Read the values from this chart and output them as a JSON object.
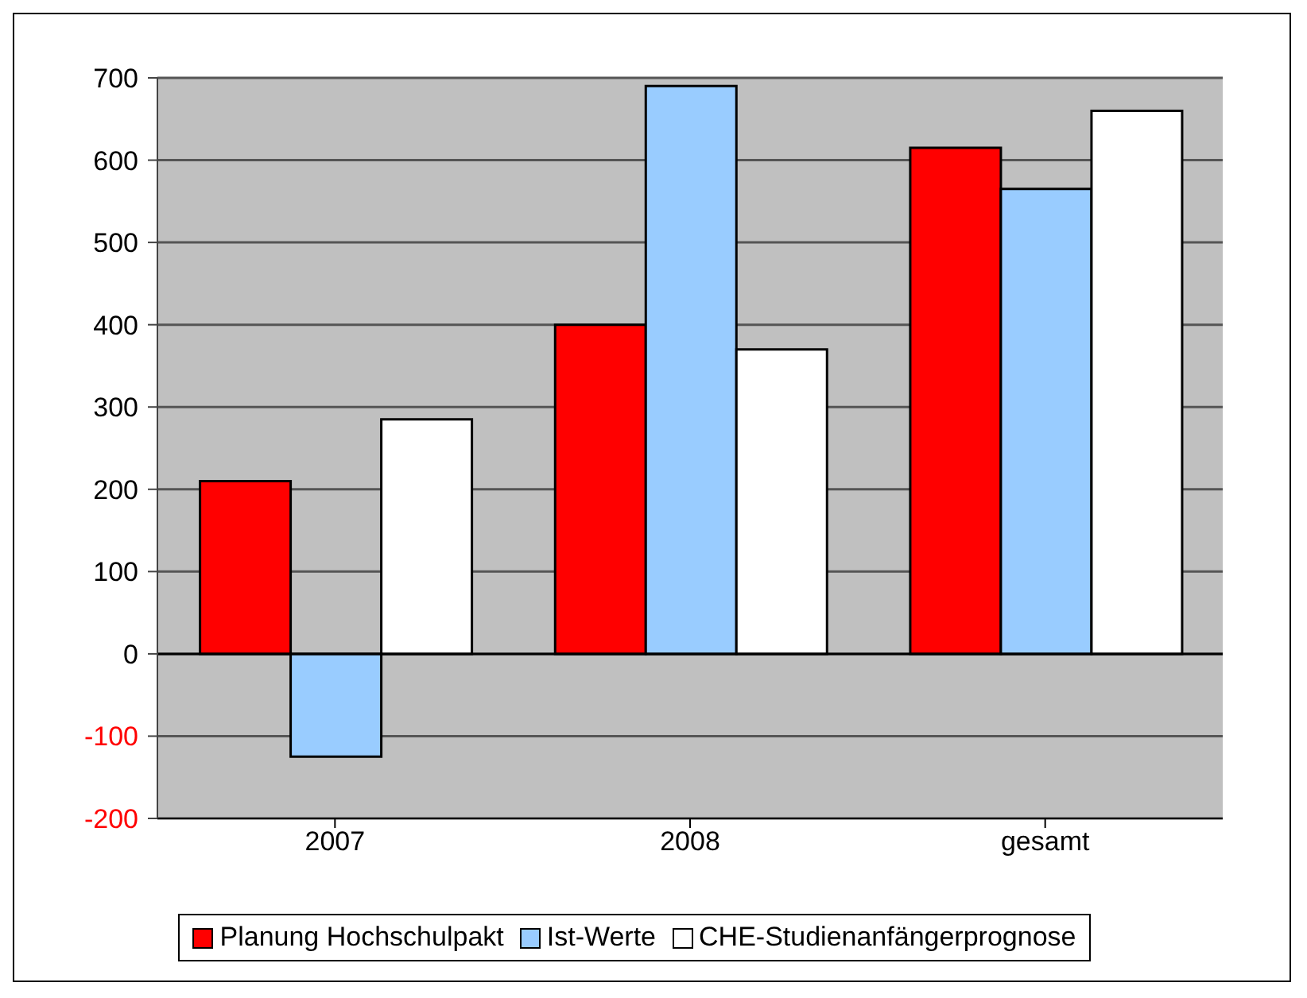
{
  "chart_data": {
    "type": "bar",
    "categories": [
      "2007",
      "2008",
      "gesamt"
    ],
    "series": [
      {
        "name": "Planung Hochschulpakt",
        "color": "#ff0000",
        "values": [
          210,
          400,
          615
        ]
      },
      {
        "name": "Ist-Werte",
        "color": "#99ccff",
        "values": [
          -125,
          690,
          565
        ]
      },
      {
        "name": "CHE-Studienanfängerprognose",
        "color": "#ffffff",
        "values": [
          285,
          370,
          660
        ]
      }
    ],
    "ylim": [
      -200,
      700
    ],
    "yticks": [
      -200,
      -100,
      0,
      100,
      200,
      300,
      400,
      500,
      600,
      700
    ],
    "grid": "y",
    "legend": "bottom"
  }
}
